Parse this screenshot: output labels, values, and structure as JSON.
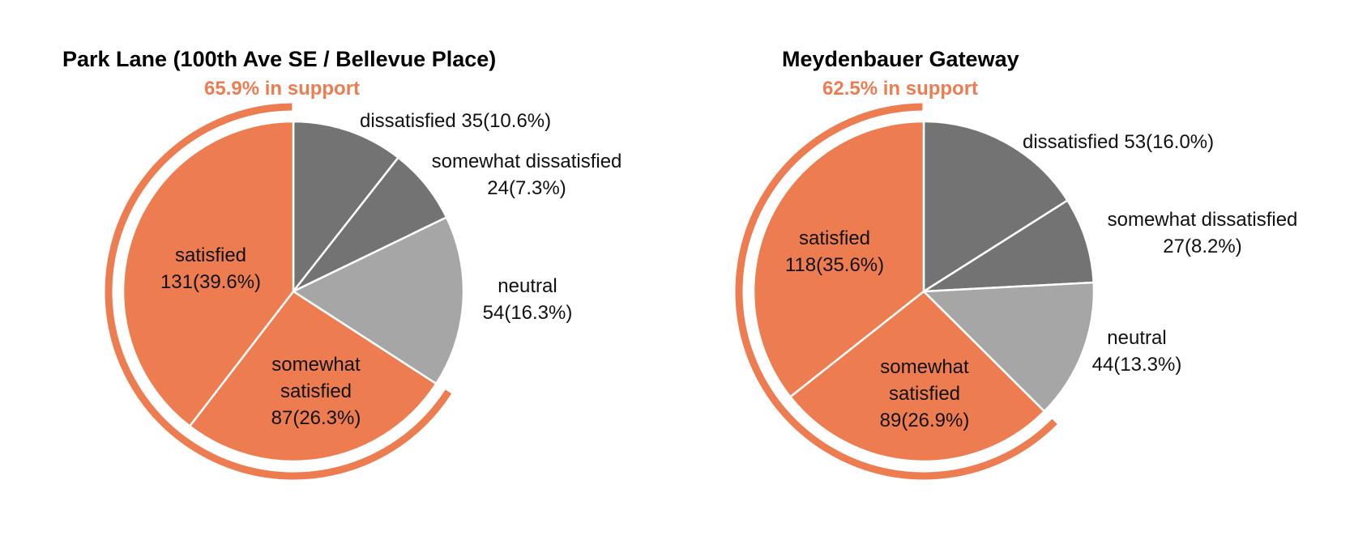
{
  "colors": {
    "satisfied": "#ED7D51",
    "somewhat_satisfied": "#ED7D51",
    "neutral": "#A6A6A6",
    "somewhat_dissatisfied": "#737373",
    "dissatisfied": "#737373",
    "support_arc": "#ED7D51"
  },
  "chart_data": [
    {
      "type": "pie",
      "title": "Park Lane (100th Ave SE / Bellevue Place)",
      "subtitle": "65.9% in support",
      "slices": [
        {
          "name": "dissatisfied",
          "value": 35,
          "percent": "10.6%"
        },
        {
          "name": "somewhat dissatisfied",
          "value": 24,
          "percent": "7.3%"
        },
        {
          "name": "neutral",
          "value": 54,
          "percent": "16.3%"
        },
        {
          "name": "somewhat satisfied",
          "value": 87,
          "percent": "26.3%"
        },
        {
          "name": "satisfied",
          "value": 131,
          "percent": "39.6%"
        }
      ],
      "support_share": 0.659
    },
    {
      "type": "pie",
      "title": "Meydenbauer Gateway",
      "subtitle": "62.5% in support",
      "slices": [
        {
          "name": "dissatisfied",
          "value": 53,
          "percent": "16.0%"
        },
        {
          "name": "somewhat dissatisfied",
          "value": 27,
          "percent": "8.2%"
        },
        {
          "name": "neutral",
          "value": 44,
          "percent": "13.3%"
        },
        {
          "name": "somewhat satisfied",
          "value": 89,
          "percent": "26.9%"
        },
        {
          "name": "satisfied",
          "value": 118,
          "percent": "35.6%"
        }
      ],
      "support_share": 0.625
    }
  ]
}
